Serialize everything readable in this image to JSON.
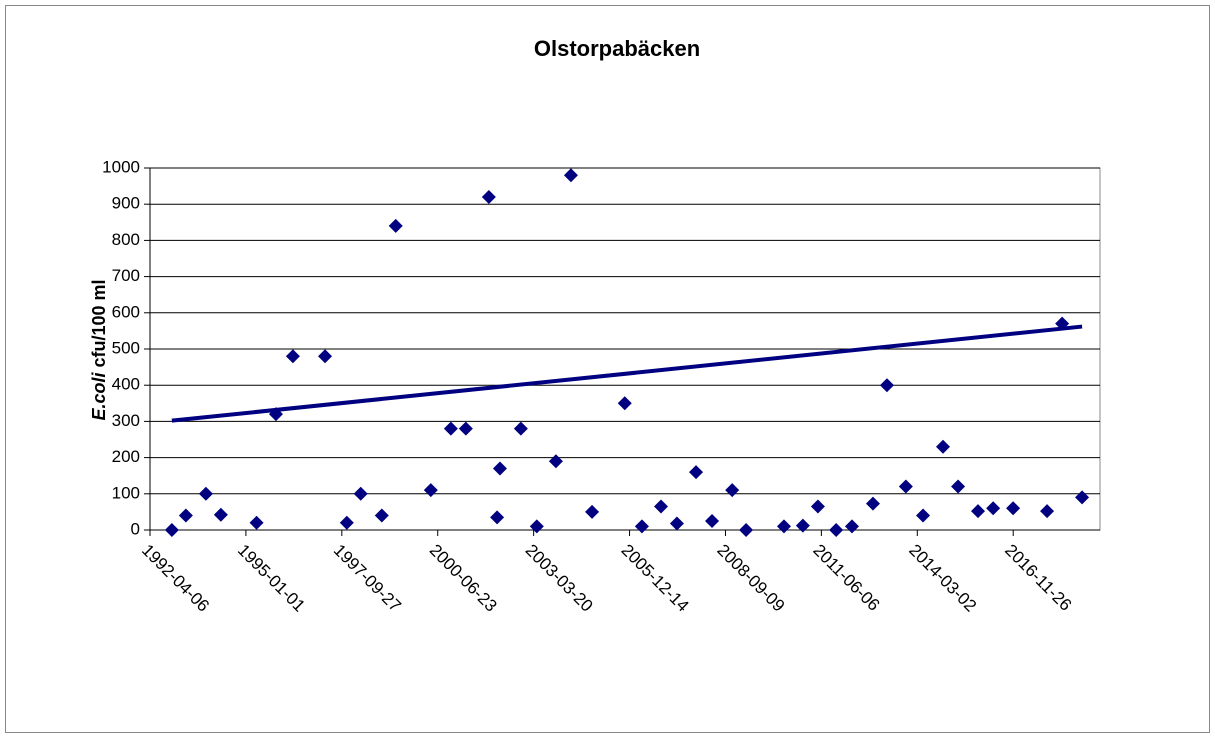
{
  "chart_data": {
    "type": "scatter",
    "title": "Olstorpabäcken",
    "ylabel": [
      "E.coli",
      "cfu/100 ml"
    ],
    "color": "#000080",
    "x": [
      "1992-11-20",
      "1993-04-15",
      "1993-11-10",
      "1994-04-15",
      "1995-04-22",
      "1995-11-10",
      "1996-05-05",
      "1997-04-05",
      "1997-11-18",
      "1998-04-12",
      "1998-11-18",
      "1999-04-12",
      "2000-04-12",
      "2000-11-07",
      "2001-04-12",
      "2001-12-08",
      "2002-04-03",
      "2002-03-04",
      "2002-11-07",
      "2003-04-22",
      "2003-11-07",
      "2004-04-12",
      "2004-11-18",
      "2005-10-25",
      "2006-04-22",
      "2006-11-07",
      "2007-04-22",
      "2007-11-07",
      "2008-04-22",
      "2008-11-18",
      "2009-04-12",
      "2010-05-12",
      "2010-11-25",
      "2011-05-01",
      "2011-11-07",
      "2012-04-20",
      "2012-11-25",
      "2013-04-20",
      "2013-11-03",
      "2014-05-01",
      "2014-11-25",
      "2015-05-01",
      "2015-11-25",
      "2016-05-01",
      "2016-11-25",
      "2017-11-14",
      "2018-04-20",
      "2018-11-14"
    ],
    "values": [
      0,
      40,
      100,
      42,
      20,
      320,
      480,
      480,
      20,
      100,
      40,
      840,
      110,
      280,
      280,
      920,
      170,
      35,
      280,
      10,
      190,
      980,
      50,
      350,
      10,
      65,
      18,
      160,
      25,
      110,
      0,
      10,
      12,
      65,
      0,
      10,
      73,
      400,
      120,
      40,
      230,
      120,
      52,
      60,
      60,
      52,
      570,
      90
    ],
    "trendline": {
      "x": [
        "1992-11-20",
        "2018-11-14"
      ],
      "values": [
        302,
        562
      ]
    },
    "xlim": [
      "1992-04-06",
      "2019-05-20"
    ],
    "xticks": [
      "1992-04-06",
      "1995-01-01",
      "1997-09-27",
      "2000-06-23",
      "2003-03-20",
      "2005-12-14",
      "2008-09-09",
      "2011-06-06",
      "2014-03-02",
      "2016-11-26"
    ],
    "ylim": [
      0,
      1000
    ],
    "yticks": [
      0,
      100,
      200,
      300,
      400,
      500,
      600,
      700,
      800,
      900,
      1000
    ],
    "grid": true
  }
}
